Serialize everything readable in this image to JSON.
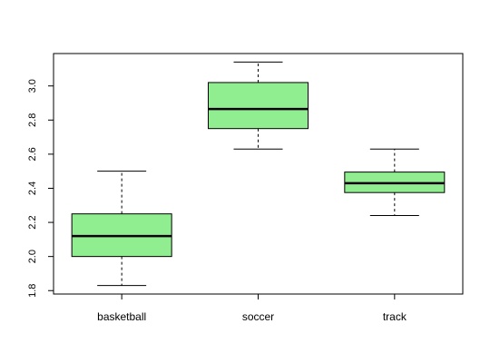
{
  "chart_data": {
    "type": "boxplot",
    "title": "",
    "xlabel": "",
    "ylabel": "",
    "categories": [
      "basketball",
      "soccer",
      "track"
    ],
    "boxes": [
      {
        "category": "basketball",
        "min": 1.83,
        "q1": 2.0,
        "median": 2.12,
        "q3": 2.25,
        "max": 2.5
      },
      {
        "category": "soccer",
        "min": 2.63,
        "q1": 2.75,
        "median": 2.865,
        "q3": 3.02,
        "max": 3.14
      },
      {
        "category": "track",
        "min": 2.24,
        "q1": 2.375,
        "median": 2.43,
        "q3": 2.495,
        "max": 2.63
      }
    ],
    "ylim": [
      1.78,
      3.19
    ],
    "yticks": [
      1.8,
      2.0,
      2.2,
      2.4,
      2.6,
      2.8,
      3.0
    ],
    "ytick_labels": [
      "1.8",
      "2.0",
      "2.2",
      "2.4",
      "2.6",
      "2.8",
      "3.0"
    ],
    "box_color": "#90EE90",
    "grid": false,
    "legend": "none"
  }
}
